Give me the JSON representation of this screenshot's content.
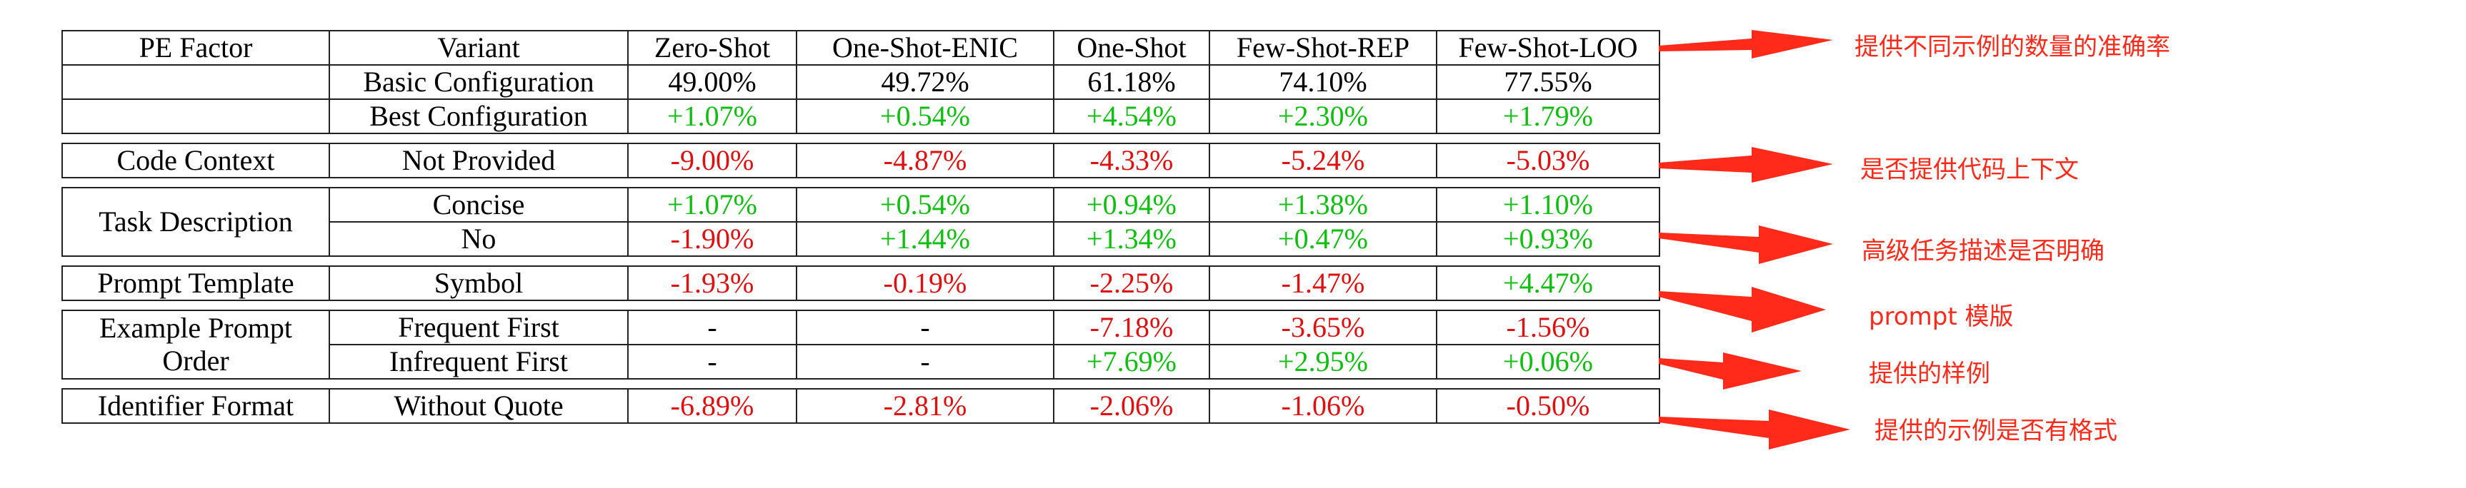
{
  "table": {
    "headers": [
      "PE Factor",
      "Variant",
      "Zero-Shot",
      "One-Shot-ENIC",
      "One-Shot",
      "Few-Shot-REP",
      "Few-Shot-LOO"
    ],
    "groups": [
      {
        "factor": "",
        "rows": [
          {
            "variant": "Basic Configuration",
            "values": [
              "49.00%",
              "49.72%",
              "61.18%",
              "74.10%",
              "77.55%"
            ]
          },
          {
            "variant": "Best Configuration",
            "values": [
              "+1.07%",
              "+0.54%",
              "+4.54%",
              "+2.30%",
              "+1.79%"
            ]
          }
        ]
      },
      {
        "factor": "Code Context",
        "rows": [
          {
            "variant": "Not Provided",
            "values": [
              "-9.00%",
              "-4.87%",
              "-4.33%",
              "-5.24%",
              "-5.03%"
            ]
          }
        ]
      },
      {
        "factor": "Task Description",
        "rows": [
          {
            "variant": "Concise",
            "values": [
              "+1.07%",
              "+0.54%",
              "+0.94%",
              "+1.38%",
              "+1.10%"
            ]
          },
          {
            "variant": "No",
            "values": [
              "-1.90%",
              "+1.44%",
              "+1.34%",
              "+0.47%",
              "+0.93%"
            ]
          }
        ]
      },
      {
        "factor": "Prompt Template",
        "rows": [
          {
            "variant": "Symbol",
            "values": [
              "-1.93%",
              "-0.19%",
              "-2.25%",
              "-1.47%",
              "+4.47%"
            ]
          }
        ]
      },
      {
        "factor": "Example Prompt Order",
        "factor_lines": [
          "Example Prompt",
          "Order"
        ],
        "rows": [
          {
            "variant": "Frequent First",
            "values": [
              "-",
              "-",
              "-7.18%",
              "-3.65%",
              "-1.56%"
            ]
          },
          {
            "variant": "Infrequent First",
            "values": [
              "-",
              "-",
              "+7.69%",
              "+2.95%",
              "+0.06%"
            ]
          }
        ]
      },
      {
        "factor": "Identifier Format",
        "rows": [
          {
            "variant": "Without Quote",
            "values": [
              "-6.89%",
              "-2.81%",
              "-2.06%",
              "-1.06%",
              "-0.50%"
            ]
          }
        ]
      }
    ]
  },
  "annotations": [
    {
      "text": "提供不同示例的数量的准确率"
    },
    {
      "text": "是否提供代码上下文"
    },
    {
      "text": "高级任务描述是否明确"
    },
    {
      "text": "prompt 模版"
    },
    {
      "text": "提供的样例"
    },
    {
      "text": "提供的示例是否有格式"
    }
  ],
  "colors": {
    "positive": "#0fbf0f",
    "negative": "#e01010",
    "annotation": "#ff2a1a"
  }
}
